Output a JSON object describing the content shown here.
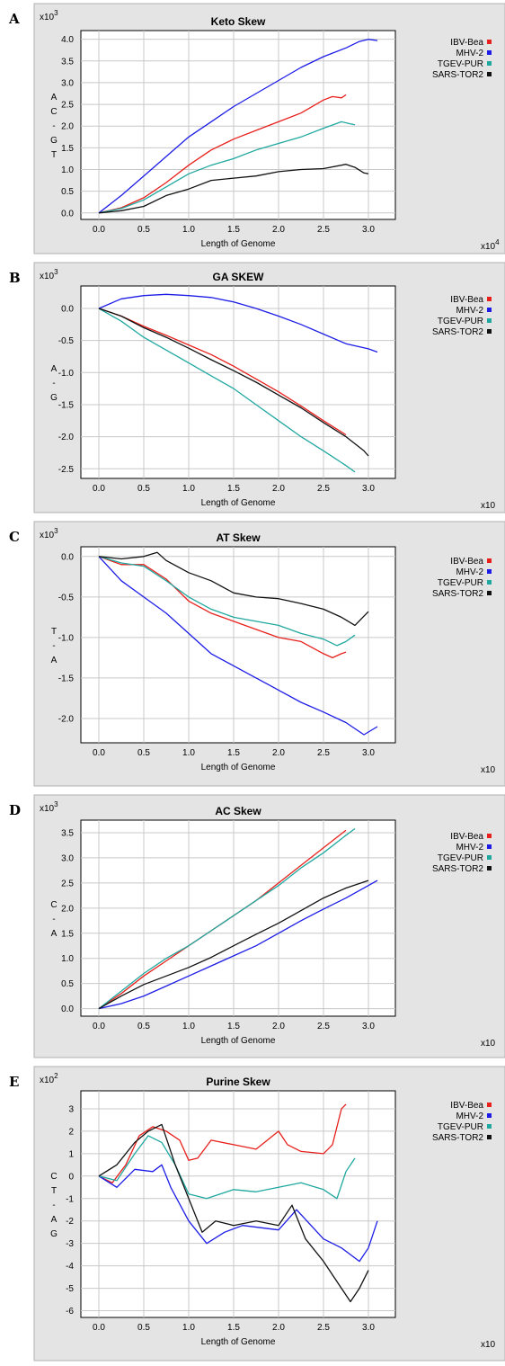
{
  "chart_data": [
    {
      "type": "line",
      "panel": "A",
      "title": "Keto Skew",
      "xlabel": "Length of Genome",
      "ylabel": [
        "A",
        "C",
        "-",
        "G",
        "T"
      ],
      "y_multiplier": "x10^3",
      "x_multiplier": "x10^4",
      "xlim": [
        -0.2,
        3.3
      ],
      "ylim": [
        -0.15,
        4.2
      ],
      "xticks": [
        0.0,
        0.5,
        1.0,
        1.5,
        2.0,
        2.5,
        3.0
      ],
      "yticks": [
        0.0,
        0.5,
        1.0,
        1.5,
        2.0,
        2.5,
        3.0,
        3.5,
        4.0
      ],
      "legend": "top-right outside",
      "series": [
        {
          "name": "IBV-Bea",
          "color": "#e8201c",
          "x": [
            0.0,
            0.25,
            0.5,
            0.75,
            1.0,
            1.25,
            1.5,
            1.75,
            2.0,
            2.25,
            2.5,
            2.6,
            2.7,
            2.75
          ],
          "y": [
            0.0,
            0.12,
            0.35,
            0.7,
            1.1,
            1.45,
            1.7,
            1.9,
            2.1,
            2.3,
            2.6,
            2.68,
            2.65,
            2.72
          ]
        },
        {
          "name": "MHV-2",
          "color": "#1c1ce6",
          "x": [
            0.0,
            0.25,
            0.5,
            0.75,
            1.0,
            1.25,
            1.5,
            1.75,
            2.0,
            2.25,
            2.5,
            2.75,
            2.9,
            3.0,
            3.1
          ],
          "y": [
            0.0,
            0.4,
            0.85,
            1.3,
            1.75,
            2.1,
            2.45,
            2.75,
            3.05,
            3.35,
            3.6,
            3.8,
            3.95,
            4.0,
            3.97
          ]
        },
        {
          "name": "TGEV-PUR",
          "color": "#1fa8a0",
          "x": [
            0.0,
            0.25,
            0.5,
            0.75,
            1.0,
            1.25,
            1.5,
            1.75,
            2.0,
            2.25,
            2.5,
            2.7,
            2.8,
            2.85
          ],
          "y": [
            0.0,
            0.1,
            0.3,
            0.6,
            0.9,
            1.1,
            1.25,
            1.45,
            1.6,
            1.75,
            1.95,
            2.1,
            2.05,
            2.03
          ]
        },
        {
          "name": "SARS-TOR2",
          "color": "#111111",
          "x": [
            0.0,
            0.25,
            0.5,
            0.75,
            1.0,
            1.25,
            1.5,
            1.75,
            2.0,
            2.25,
            2.5,
            2.75,
            2.85,
            2.95,
            3.0
          ],
          "y": [
            0.0,
            0.05,
            0.15,
            0.4,
            0.55,
            0.75,
            0.8,
            0.85,
            0.95,
            1.0,
            1.02,
            1.12,
            1.05,
            0.92,
            0.9
          ]
        }
      ]
    },
    {
      "type": "line",
      "panel": "B",
      "title": "GA SKEW",
      "xlabel": "Length of Genome",
      "ylabel": [
        "A",
        "-",
        "G"
      ],
      "y_multiplier": "x10^3",
      "x_multiplier": "x10^",
      "xlim": [
        -0.2,
        3.3
      ],
      "ylim": [
        -2.65,
        0.35
      ],
      "xticks": [
        0.0,
        0.5,
        1.0,
        1.5,
        2.0,
        2.5,
        3.0
      ],
      "yticks": [
        0.0,
        -0.5,
        -1.0,
        -1.5,
        -2.0,
        -2.5
      ],
      "legend": "top-right outside",
      "series": [
        {
          "name": "IBV-Bea",
          "color": "#e8201c",
          "x": [
            0.0,
            0.25,
            0.5,
            0.75,
            1.0,
            1.25,
            1.5,
            1.75,
            2.0,
            2.25,
            2.5,
            2.75
          ],
          "y": [
            0.0,
            -0.12,
            -0.28,
            -0.42,
            -0.57,
            -0.72,
            -0.9,
            -1.1,
            -1.3,
            -1.52,
            -1.75,
            -1.97
          ]
        },
        {
          "name": "MHV-2",
          "color": "#1c1ce6",
          "x": [
            0.0,
            0.25,
            0.5,
            0.75,
            1.0,
            1.25,
            1.5,
            1.75,
            2.0,
            2.25,
            2.5,
            2.75,
            3.0,
            3.1
          ],
          "y": [
            0.0,
            0.15,
            0.2,
            0.22,
            0.2,
            0.17,
            0.1,
            0.0,
            -0.12,
            -0.25,
            -0.4,
            -0.55,
            -0.63,
            -0.68
          ]
        },
        {
          "name": "TGEV-PUR",
          "color": "#1fa8a0",
          "x": [
            0.0,
            0.25,
            0.5,
            0.75,
            1.0,
            1.25,
            1.5,
            1.75,
            2.0,
            2.25,
            2.5,
            2.75,
            2.85
          ],
          "y": [
            0.0,
            -0.2,
            -0.45,
            -0.65,
            -0.85,
            -1.05,
            -1.25,
            -1.5,
            -1.75,
            -2.0,
            -2.22,
            -2.45,
            -2.55
          ]
        },
        {
          "name": "SARS-TOR2",
          "color": "#111111",
          "x": [
            0.0,
            0.25,
            0.5,
            0.75,
            1.0,
            1.25,
            1.5,
            1.75,
            2.0,
            2.25,
            2.5,
            2.75,
            2.95,
            3.0
          ],
          "y": [
            0.0,
            -0.12,
            -0.3,
            -0.45,
            -0.62,
            -0.8,
            -0.97,
            -1.15,
            -1.35,
            -1.55,
            -1.78,
            -2.0,
            -2.22,
            -2.3
          ]
        }
      ]
    },
    {
      "type": "line",
      "panel": "C",
      "title": "AT Skew",
      "xlabel": "Length of Genome",
      "ylabel": [
        "T",
        "-",
        "A"
      ],
      "y_multiplier": "x10^3",
      "x_multiplier": "x10^",
      "xlim": [
        -0.2,
        3.3
      ],
      "ylim": [
        -2.3,
        0.12
      ],
      "xticks": [
        0.0,
        0.5,
        1.0,
        1.5,
        2.0,
        2.5,
        3.0
      ],
      "yticks": [
        0.0,
        -0.5,
        -1.0,
        -1.5,
        -2.0
      ],
      "legend": "top-right outside",
      "series": [
        {
          "name": "IBV-Bea",
          "color": "#e8201c",
          "x": [
            0.0,
            0.25,
            0.5,
            0.75,
            1.0,
            1.25,
            1.5,
            1.75,
            2.0,
            2.25,
            2.5,
            2.6,
            2.7,
            2.75
          ],
          "y": [
            0.0,
            -0.1,
            -0.1,
            -0.28,
            -0.55,
            -0.7,
            -0.8,
            -0.9,
            -1.0,
            -1.05,
            -1.2,
            -1.25,
            -1.2,
            -1.18
          ]
        },
        {
          "name": "MHV-2",
          "color": "#1c1ce6",
          "x": [
            0.0,
            0.25,
            0.5,
            0.75,
            1.0,
            1.25,
            1.5,
            1.75,
            2.0,
            2.25,
            2.5,
            2.75,
            2.95,
            3.1
          ],
          "y": [
            0.0,
            -0.3,
            -0.5,
            -0.7,
            -0.95,
            -1.2,
            -1.35,
            -1.5,
            -1.65,
            -1.8,
            -1.92,
            -2.05,
            -2.2,
            -2.1
          ]
        },
        {
          "name": "TGEV-PUR",
          "color": "#1fa8a0",
          "x": [
            0.0,
            0.25,
            0.5,
            0.75,
            1.0,
            1.25,
            1.5,
            1.75,
            2.0,
            2.25,
            2.5,
            2.65,
            2.75,
            2.85
          ],
          "y": [
            0.0,
            -0.08,
            -0.12,
            -0.3,
            -0.5,
            -0.65,
            -0.75,
            -0.8,
            -0.85,
            -0.95,
            -1.02,
            -1.1,
            -1.05,
            -0.97
          ]
        },
        {
          "name": "SARS-TOR2",
          "color": "#111111",
          "x": [
            0.0,
            0.25,
            0.5,
            0.65,
            0.75,
            1.0,
            1.25,
            1.5,
            1.75,
            2.0,
            2.25,
            2.5,
            2.7,
            2.85,
            3.0
          ],
          "y": [
            0.0,
            -0.03,
            0.0,
            0.05,
            -0.05,
            -0.2,
            -0.3,
            -0.45,
            -0.5,
            -0.52,
            -0.58,
            -0.65,
            -0.75,
            -0.85,
            -0.68
          ]
        }
      ]
    },
    {
      "type": "line",
      "panel": "D",
      "title": "AC Skew",
      "xlabel": "Length of Genome",
      "ylabel": [
        "C",
        "-",
        "A"
      ],
      "y_multiplier": "x10^3",
      "x_multiplier": "x10^",
      "xlim": [
        -0.2,
        3.3
      ],
      "ylim": [
        -0.15,
        3.75
      ],
      "xticks": [
        0.0,
        0.5,
        1.0,
        1.5,
        2.0,
        2.5,
        3.0
      ],
      "yticks": [
        0.0,
        0.5,
        1.0,
        1.5,
        2.0,
        2.5,
        3.0,
        3.5
      ],
      "legend": "top-right outside",
      "series": [
        {
          "name": "IBV-Bea",
          "color": "#e8201c",
          "x": [
            0.0,
            0.25,
            0.5,
            0.75,
            1.0,
            1.25,
            1.5,
            1.75,
            2.0,
            2.25,
            2.5,
            2.75
          ],
          "y": [
            0.0,
            0.3,
            0.65,
            0.95,
            1.25,
            1.55,
            1.85,
            2.15,
            2.5,
            2.85,
            3.2,
            3.55
          ]
        },
        {
          "name": "MHV-2",
          "color": "#1c1ce6",
          "x": [
            0.0,
            0.25,
            0.5,
            0.75,
            1.0,
            1.25,
            1.5,
            1.75,
            2.0,
            2.25,
            2.5,
            2.75,
            3.0,
            3.1
          ],
          "y": [
            0.0,
            0.1,
            0.25,
            0.45,
            0.65,
            0.85,
            1.05,
            1.25,
            1.5,
            1.75,
            1.98,
            2.2,
            2.45,
            2.55
          ]
        },
        {
          "name": "TGEV-PUR",
          "color": "#1fa8a0",
          "x": [
            0.0,
            0.25,
            0.5,
            0.75,
            1.0,
            1.25,
            1.5,
            1.75,
            2.0,
            2.25,
            2.5,
            2.75,
            2.85
          ],
          "y": [
            0.0,
            0.35,
            0.7,
            1.0,
            1.25,
            1.55,
            1.85,
            2.15,
            2.45,
            2.8,
            3.1,
            3.45,
            3.58
          ]
        },
        {
          "name": "SARS-TOR2",
          "color": "#111111",
          "x": [
            0.0,
            0.25,
            0.5,
            0.75,
            1.0,
            1.25,
            1.5,
            1.75,
            2.0,
            2.25,
            2.5,
            2.75,
            3.0
          ],
          "y": [
            0.0,
            0.25,
            0.48,
            0.65,
            0.82,
            1.02,
            1.25,
            1.48,
            1.7,
            1.95,
            2.2,
            2.4,
            2.55
          ]
        }
      ]
    },
    {
      "type": "line",
      "panel": "E",
      "title": "Purine Skew",
      "xlabel": "Length of Genome",
      "ylabel": [
        "C",
        "T",
        "-",
        "A",
        "G"
      ],
      "y_multiplier": "x10^2",
      "x_multiplier": "x10^",
      "xlim": [
        -0.2,
        3.3
      ],
      "ylim": [
        -6.3,
        3.8
      ],
      "xticks": [
        0.0,
        0.5,
        1.0,
        1.5,
        2.0,
        2.5,
        3.0
      ],
      "yticks": [
        3,
        2,
        1,
        0,
        -1,
        -2,
        -3,
        -4,
        -5,
        -6
      ],
      "legend": "top-right outside",
      "series": [
        {
          "name": "IBV-Bea",
          "color": "#e8201c",
          "x": [
            0.0,
            0.15,
            0.3,
            0.45,
            0.6,
            0.75,
            0.9,
            1.0,
            1.1,
            1.25,
            1.5,
            1.75,
            2.0,
            2.1,
            2.25,
            2.5,
            2.6,
            2.7,
            2.75
          ],
          "y": [
            0.0,
            -0.3,
            0.5,
            1.8,
            2.2,
            2.0,
            1.6,
            0.7,
            0.8,
            1.6,
            1.4,
            1.2,
            2.0,
            1.4,
            1.1,
            1.0,
            1.4,
            3.0,
            3.2
          ]
        },
        {
          "name": "MHV-2",
          "color": "#1c1ce6",
          "x": [
            0.0,
            0.2,
            0.4,
            0.6,
            0.7,
            0.8,
            1.0,
            1.1,
            1.2,
            1.4,
            1.6,
            1.8,
            2.0,
            2.2,
            2.5,
            2.7,
            2.9,
            3.0,
            3.1
          ],
          "y": [
            0.0,
            -0.5,
            0.3,
            0.2,
            0.5,
            -0.5,
            -2.0,
            -2.5,
            -3.0,
            -2.5,
            -2.2,
            -2.3,
            -2.4,
            -1.5,
            -2.8,
            -3.2,
            -3.8,
            -3.2,
            -2.0
          ]
        },
        {
          "name": "TGEV-PUR",
          "color": "#1fa8a0",
          "x": [
            0.0,
            0.2,
            0.4,
            0.55,
            0.7,
            0.85,
            1.0,
            1.2,
            1.5,
            1.75,
            2.0,
            2.25,
            2.5,
            2.65,
            2.75,
            2.85
          ],
          "y": [
            0.0,
            -0.2,
            1.0,
            1.8,
            1.5,
            0.5,
            -0.8,
            -1.0,
            -0.6,
            -0.7,
            -0.5,
            -0.3,
            -0.6,
            -1.0,
            0.2,
            0.8
          ]
        },
        {
          "name": "SARS-TOR2",
          "color": "#111111",
          "x": [
            0.0,
            0.2,
            0.4,
            0.55,
            0.7,
            0.85,
            1.0,
            1.15,
            1.3,
            1.5,
            1.75,
            2.0,
            2.15,
            2.3,
            2.5,
            2.7,
            2.8,
            2.9,
            3.0
          ],
          "y": [
            0.0,
            0.5,
            1.5,
            2.0,
            2.3,
            0.5,
            -1.0,
            -2.5,
            -2.0,
            -2.2,
            -2.0,
            -2.2,
            -1.3,
            -2.8,
            -3.8,
            -5.0,
            -5.6,
            -5.0,
            -4.2
          ]
        }
      ]
    }
  ]
}
